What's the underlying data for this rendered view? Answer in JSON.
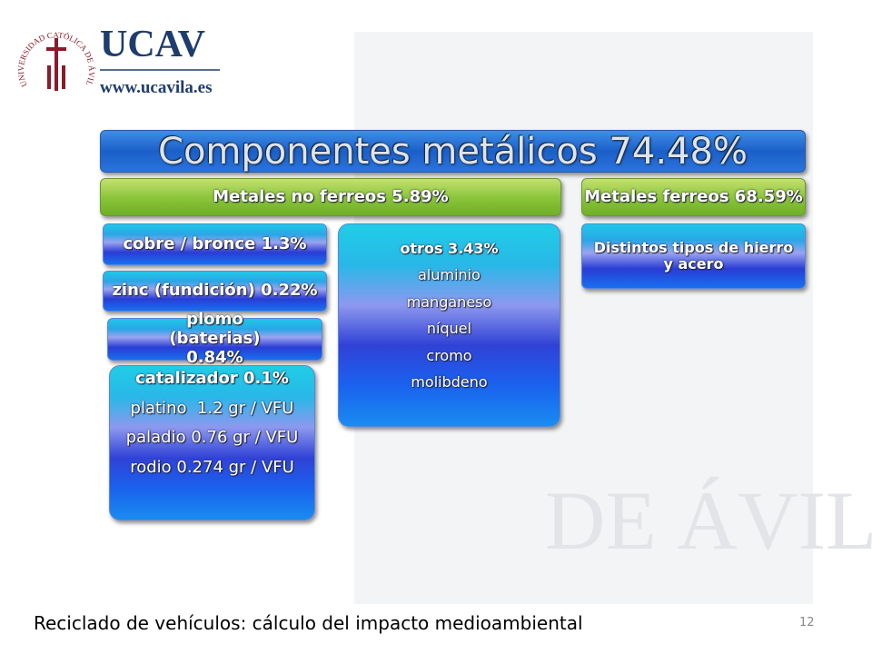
{
  "logo": {
    "name": "UCAV",
    "url": "www.ucavila.es",
    "seal": "UNIVERSIDAD CATÓLICA DE ÁVILA"
  },
  "watermark": "DE ÁVILA",
  "diagram": {
    "title": "Componentes metálicos 74.48%",
    "groups": [
      {
        "label": "Metales no ferreos 5.89%",
        "items": [
          {
            "label": "cobre / bronce 1.3%"
          },
          {
            "label": "zinc (fundición) 0.22%"
          },
          {
            "label": "plomo (baterias) 0.84%"
          },
          {
            "label": "catalizador 0.1%",
            "details": [
              "platino  1.2 gr / VFU",
              "paladio 0.76 gr / VFU",
              "rodio 0.274 gr / VFU"
            ]
          },
          {
            "label": "otros 3.43%",
            "details": [
              "aluminio",
              "manganeso",
              "níquel",
              "cromo",
              "molibdeno"
            ]
          }
        ]
      },
      {
        "label": "Metales ferreos 68.59%",
        "items": [
          {
            "label": "Distintos tipos de hierro y acero"
          }
        ]
      }
    ]
  },
  "footer": {
    "text": "Reciclado de vehículos: cálculo del impacto medioambiental",
    "page": "12"
  }
}
